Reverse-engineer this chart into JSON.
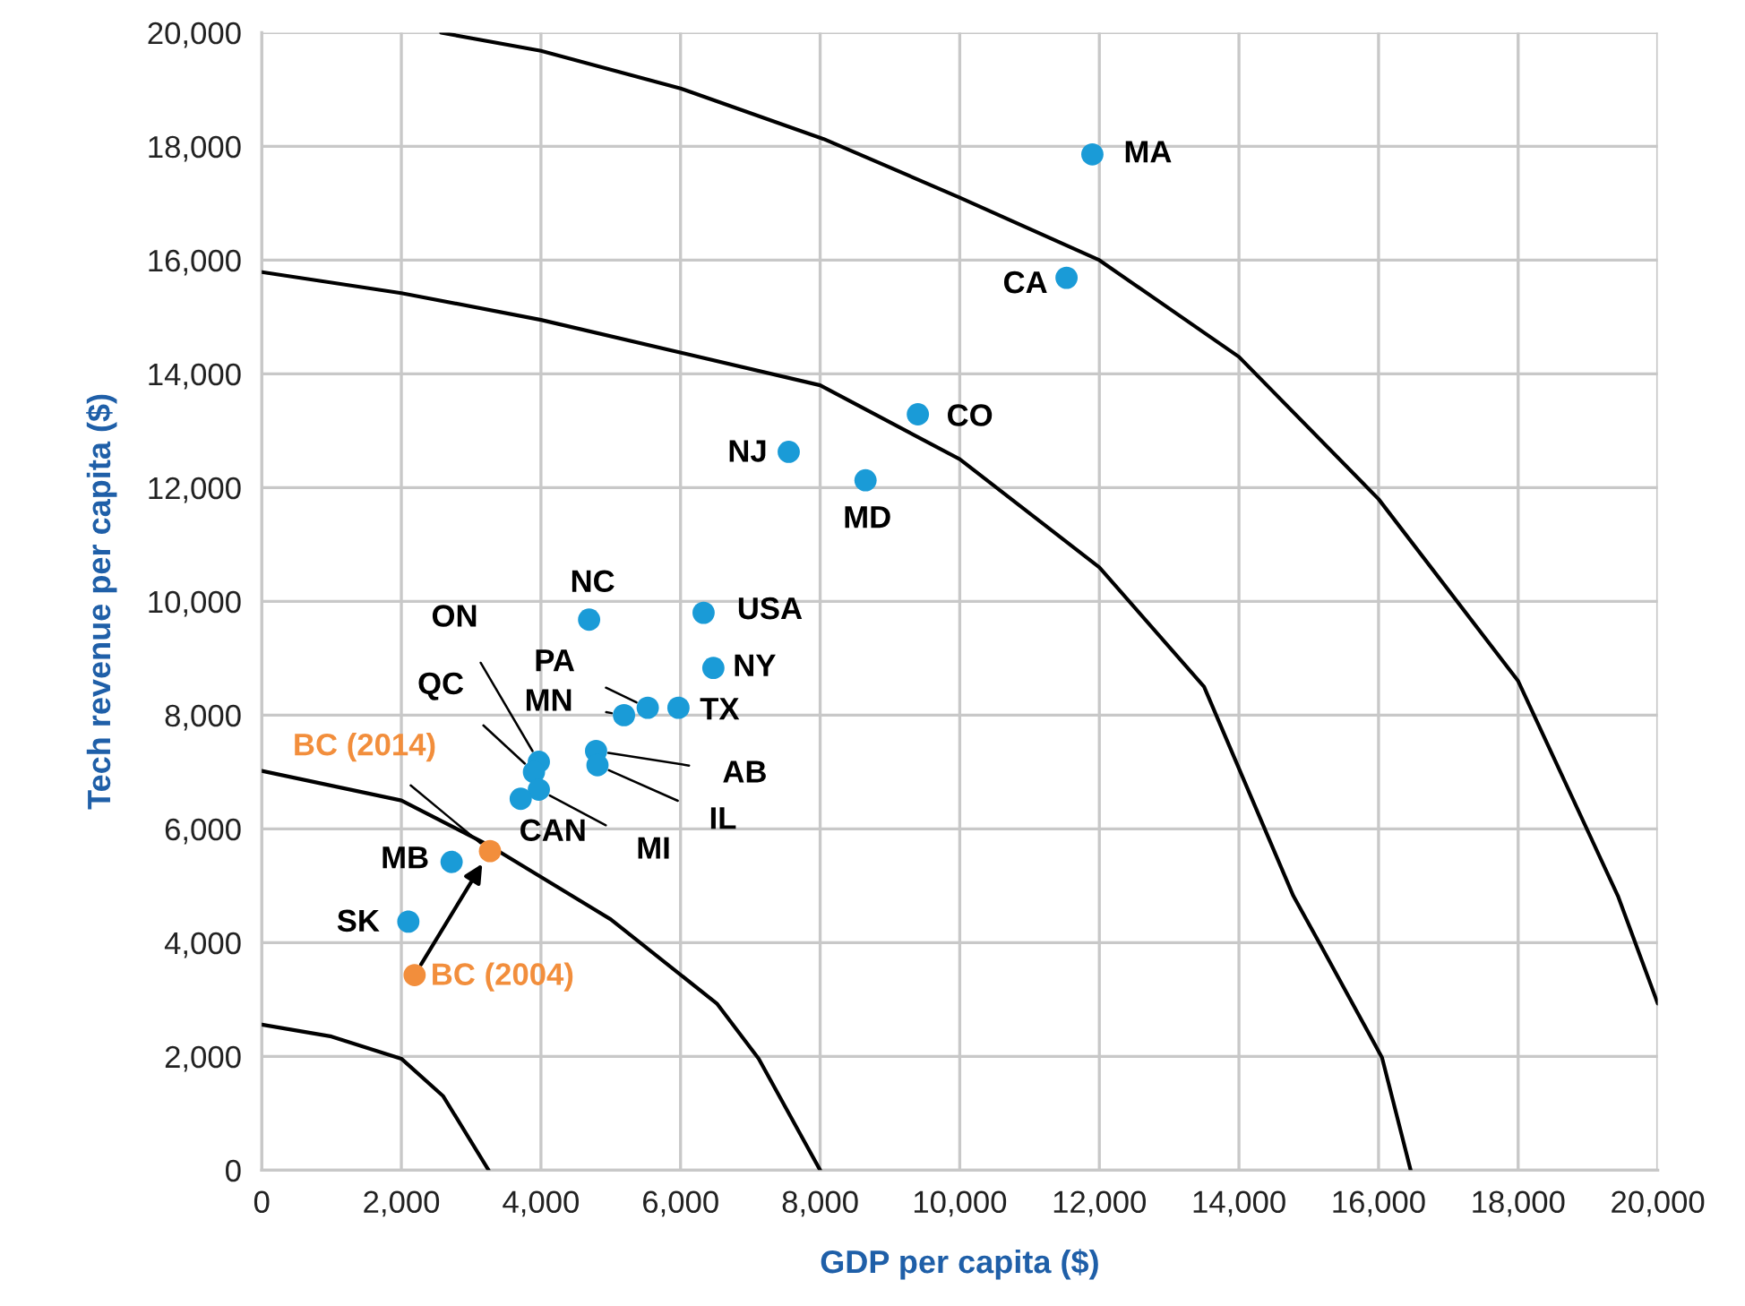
{
  "chart_data": {
    "type": "scatter",
    "xlabel": "GDP per capita ($)",
    "ylabel": "Tech revenue per capita ($)",
    "xlim": [
      0,
      20000
    ],
    "ylim": [
      0,
      20000
    ],
    "xticks": [
      {
        "value": 0,
        "label": "0"
      },
      {
        "value": 2000,
        "label": "2,000"
      },
      {
        "value": 4000,
        "label": "4,000"
      },
      {
        "value": 6000,
        "label": "6,000"
      },
      {
        "value": 8000,
        "label": "8,000"
      },
      {
        "value": 10000,
        "label": "10,000"
      },
      {
        "value": 12000,
        "label": "12,000"
      },
      {
        "value": 14000,
        "label": "14,000"
      },
      {
        "value": 16000,
        "label": "16,000"
      },
      {
        "value": 18000,
        "label": "18,000"
      },
      {
        "value": 20000,
        "label": "20,000"
      }
    ],
    "yticks": [
      {
        "value": 0,
        "label": "0"
      },
      {
        "value": 2000,
        "label": "2,000"
      },
      {
        "value": 4000,
        "label": "4,000"
      },
      {
        "value": 6000,
        "label": "6,000"
      },
      {
        "value": 8000,
        "label": "8,000"
      },
      {
        "value": 10000,
        "label": "10,000"
      },
      {
        "value": 12000,
        "label": "12,000"
      },
      {
        "value": 14000,
        "label": "14,000"
      },
      {
        "value": 16000,
        "label": "16,000"
      },
      {
        "value": 18000,
        "label": "18,000"
      },
      {
        "value": 20000,
        "label": "20,000"
      }
    ],
    "grid": true,
    "marker": "circle",
    "series": [
      {
        "color": "#1a9bd7",
        "x": [
          11900,
          11530,
          9400,
          7550,
          8650,
          4690,
          6330,
          6470,
          5970,
          5530,
          5190,
          3970,
          3900,
          4790,
          4810,
          3970,
          3710,
          2720,
          2100
        ],
        "values": [
          17860,
          15690,
          13290,
          12630,
          12130,
          9680,
          9800,
          8830,
          8130,
          8130,
          8000,
          7180,
          7000,
          7370,
          7120,
          6690,
          6530,
          5420,
          4370
        ]
      },
      {
        "color": "#f28e3c",
        "x": [
          2190,
          3270
        ],
        "values": [
          3430,
          5610
        ]
      },
      {
        "type": "line",
        "color": "#000000",
        "marker": "none",
        "x": [
          0,
          1000,
          2000,
          2600,
          3250
        ],
        "values": [
          2560,
          2350,
          1960,
          1300,
          0
        ]
      },
      {
        "type": "line",
        "color": "#000000",
        "marker": "none",
        "x": [
          0,
          2000,
          3270,
          5000,
          6520,
          7120,
          8000
        ],
        "values": [
          7020,
          6500,
          5700,
          4410,
          2930,
          1960,
          0
        ]
      },
      {
        "type": "line",
        "color": "#000000",
        "marker": "none",
        "x": [
          0,
          2000,
          4000,
          8000,
          10000,
          12000,
          13500,
          14780,
          15160,
          16050,
          16460
        ],
        "values": [
          15790,
          15420,
          14950,
          13800,
          12500,
          10600,
          8500,
          4820,
          3980,
          1980,
          0
        ]
      },
      {
        "type": "line",
        "color": "#000000",
        "marker": "none",
        "x": [
          2570,
          4000,
          6000,
          8050,
          10000,
          12000,
          14000,
          16000,
          18000,
          19430,
          20000
        ],
        "values": [
          20000,
          19680,
          19020,
          18130,
          17100,
          16000,
          14300,
          11800,
          8600,
          4820,
          2930
        ]
      }
    ],
    "annotations": [
      {
        "text": "MA",
        "x": 11900,
        "y": 17860
      },
      {
        "text": "CA",
        "x": 11530,
        "y": 15690
      },
      {
        "text": "CO",
        "x": 9400,
        "y": 13290
      },
      {
        "text": "NJ",
        "x": 7550,
        "y": 12630
      },
      {
        "text": "MD",
        "x": 8650,
        "y": 12130
      },
      {
        "text": "NC",
        "x": 4690,
        "y": 9680
      },
      {
        "text": "USA",
        "x": 6330,
        "y": 9800
      },
      {
        "text": "NY",
        "x": 6470,
        "y": 8830
      },
      {
        "text": "TX",
        "x": 5970,
        "y": 8130
      },
      {
        "text": "PA",
        "x": 5530,
        "y": 8130
      },
      {
        "text": "MN",
        "x": 5190,
        "y": 8000
      },
      {
        "text": "ON",
        "x": 3970,
        "y": 7180
      },
      {
        "text": "QC",
        "x": 3900,
        "y": 7000
      },
      {
        "text": "AB",
        "x": 4790,
        "y": 7370
      },
      {
        "text": "IL",
        "x": 4810,
        "y": 7120
      },
      {
        "text": "MI",
        "x": 3970,
        "y": 6690
      },
      {
        "text": "CAN",
        "x": 3710,
        "y": 6530
      },
      {
        "text": "MB",
        "x": 2720,
        "y": 5420
      },
      {
        "text": "SK",
        "x": 2100,
        "y": 4370
      },
      {
        "text": "BC (2014)",
        "x": 3270,
        "y": 5610
      },
      {
        "text": "BC (2004)",
        "x": 2190,
        "y": 3430
      }
    ]
  }
}
